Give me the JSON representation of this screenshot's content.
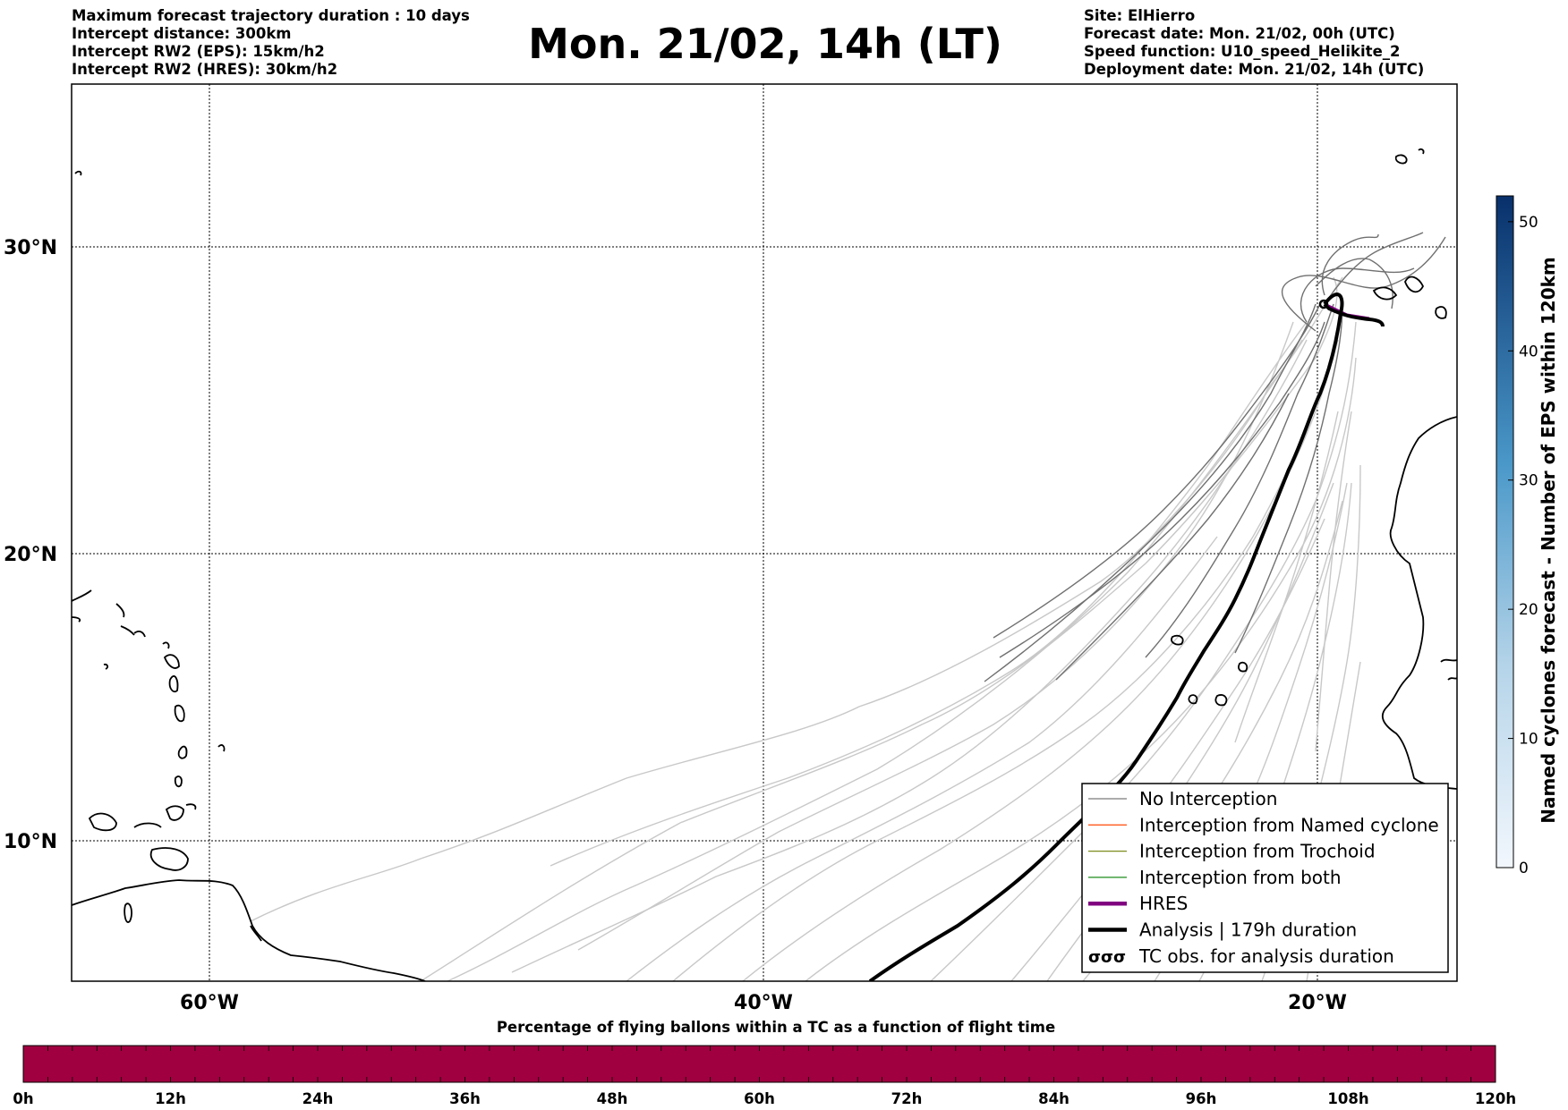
{
  "header_left": [
    "Maximum forecast trajectory duration : 10 days",
    "Intercept distance: 300km",
    "Intercept RW2 (EPS):  15km/h2",
    "Intercept RW2 (HRES): 30km/h2"
  ],
  "title": "Mon. 21/02, 14h (LT)",
  "header_right": [
    "Site: ElHierro",
    "Forecast date: Mon. 21/02, 00h (UTC)",
    "Speed function: U10_speed_Helikite_2",
    "Deployment date: Mon. 21/02, 14h (UTC)"
  ],
  "map": {
    "lat_labels": [
      "30°N",
      "20°N",
      "10°N"
    ],
    "lon_labels": [
      "60°W",
      "40°W",
      "20°W"
    ],
    "lat_values": [
      30,
      20,
      10
    ],
    "lon_values": [
      -60,
      -40,
      -20
    ],
    "gridlines": "dotted"
  },
  "legend": {
    "items": [
      {
        "label": "No Interception",
        "color": "#7a7a7a",
        "style": "thin-line"
      },
      {
        "label": "Interception from Named cyclone",
        "color": "#ff5a1e",
        "style": "thin-line"
      },
      {
        "label": "Interception from Trochoid",
        "color": "#7f8c1e",
        "style": "thin-line"
      },
      {
        "label": "Interception from both",
        "color": "#1e8c1e",
        "style": "thin-line"
      },
      {
        "label": "HRES",
        "color": "#800080",
        "style": "thick-line"
      },
      {
        "label": "Analysis | 179h duration",
        "color": "#000000",
        "style": "thick-line"
      },
      {
        "label": "TC obs. for analysis duration",
        "color": "#000000",
        "style": "cyclone-symbol"
      }
    ],
    "symbol_glyphs": "σσσ"
  },
  "colorbar_right": {
    "label": "Named cyclones forecast - Number of EPS within 120km",
    "ticks": [
      "0",
      "10",
      "20",
      "30",
      "40",
      "50"
    ],
    "tick_values": [
      0,
      10,
      20,
      30,
      40,
      50
    ],
    "min": 0,
    "max": 52,
    "color_low": "#e3eef8",
    "color_high": "#08306b"
  },
  "bottom_bar": {
    "title": "Percentage of flying ballons within a TC as a function of flight time",
    "ticks": [
      "0h",
      "12h",
      "24h",
      "36h",
      "48h",
      "60h",
      "72h",
      "84h",
      "96h",
      "108h",
      "120h"
    ],
    "fill_color": "#a00040"
  }
}
